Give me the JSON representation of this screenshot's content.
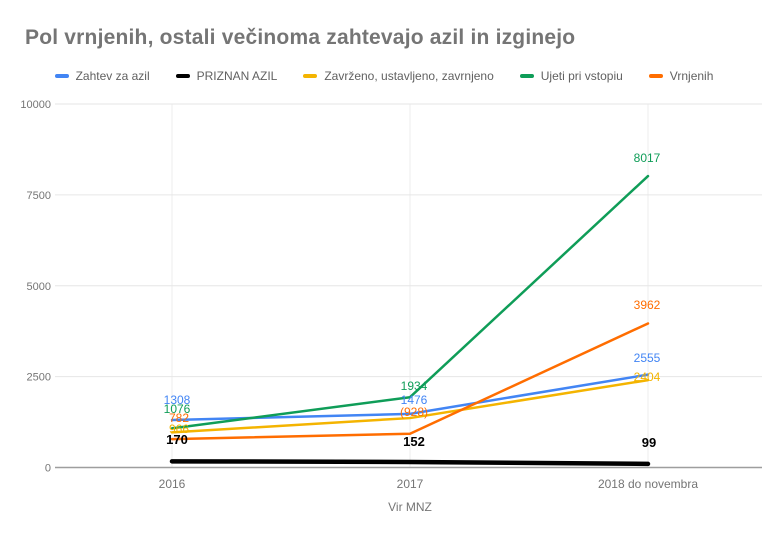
{
  "title": "Pol vrnjenih, ostali večinoma zahtevajo azil in izginejo",
  "colors": {
    "title_text": "#757575",
    "axis_text": "#757575",
    "legend_text": "#616161",
    "gridline": "#e6e6e6",
    "vertical_gridline": "#ececec",
    "baseline": "#9e9e9e",
    "background": "#ffffff"
  },
  "chart_data": {
    "type": "line",
    "title": "Pol vrnjenih, ostali večinoma zahtevajo azil in izginejo",
    "categories": [
      "2016",
      "2017",
      "2018 do novembra"
    ],
    "series": [
      {
        "name": "Zahtev za azil",
        "color": "#4285F4",
        "values": [
          1308,
          1476,
          2555
        ],
        "point_labels": [
          "1308",
          "1476",
          "2555"
        ]
      },
      {
        "name": "PRIZNAN AZIL",
        "color": "#000000",
        "values": [
          170,
          152,
          99
        ],
        "point_labels": [
          "170",
          "152",
          "99"
        ]
      },
      {
        "name": "Zavrženo, ustavljeno, zavrnjeno",
        "color": "#F4B400",
        "values": [
          966,
          1360,
          2404
        ],
        "point_labels": [
          "966",
          "",
          "2404"
        ],
        "note": "2017 value estimated from line position; its label is occluded in the source image"
      },
      {
        "name": "Ujeti pri vstopiu",
        "color": "#0F9D58",
        "values": [
          1076,
          1934,
          8017
        ],
        "point_labels": [
          "1076",
          "1934",
          "8017"
        ]
      },
      {
        "name": "Vrnjenih",
        "color": "#FF6D00",
        "values": [
          782,
          928,
          3962
        ],
        "point_labels": [
          "782",
          "(928)",
          "3962"
        ]
      }
    ],
    "xlabel": "Vir MNZ",
    "ylabel": "",
    "ylim": [
      0,
      10000
    ],
    "y_ticks": [
      0,
      2500,
      5000,
      7500,
      10000
    ],
    "grid": true,
    "legend_position": "top"
  }
}
